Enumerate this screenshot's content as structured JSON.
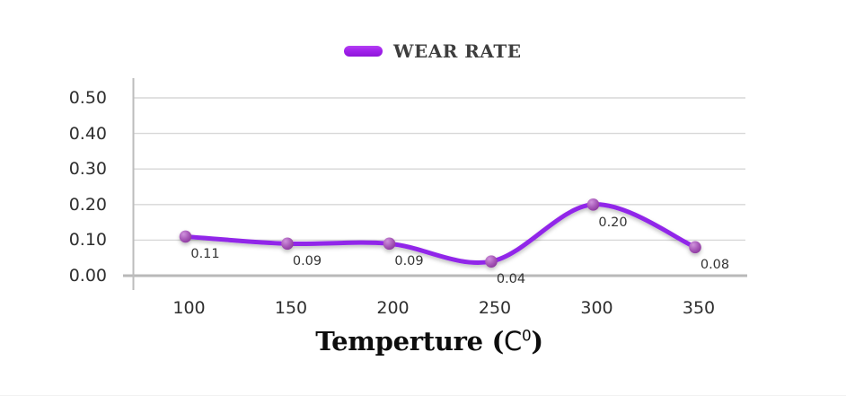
{
  "legend": {
    "position": "top-center",
    "items": [
      {
        "label": "WEAR RATE",
        "marker_color": "#a222ec"
      }
    ]
  },
  "chart_data": {
    "type": "line",
    "title": "",
    "xlabel": {
      "text": "Temperture (C0)",
      "main": "Temperture (",
      "unit": "C",
      "sup": "0",
      "close": ")"
    },
    "ylabel": "",
    "x": [
      100,
      150,
      200,
      250,
      300,
      350
    ],
    "x_ticks": [
      "100",
      "150",
      "200",
      "250",
      "300",
      "350"
    ],
    "y_ticks": [
      "0.00",
      "0.10",
      "0.20",
      "0.30",
      "0.40",
      "0.50"
    ],
    "ylim": [
      0,
      0.55
    ],
    "grid": true,
    "smooth": true,
    "legend_position": "top",
    "series": [
      {
        "name": "WEAR RATE",
        "values": [
          0.11,
          0.09,
          0.09,
          0.04,
          0.2,
          0.08
        ]
      }
    ],
    "point_labels": [
      "0.11",
      "0.09",
      "0.09",
      "0.04",
      "0.20",
      "0.08"
    ],
    "colors": {
      "line": "#9127e9",
      "marker": "#a85ab9",
      "grid": "#d7d7d7",
      "axis": "#b9b9b9",
      "tick_text": "#2f2f2f",
      "label_text": "#333333",
      "legend_text": "#3d3d3d"
    }
  }
}
